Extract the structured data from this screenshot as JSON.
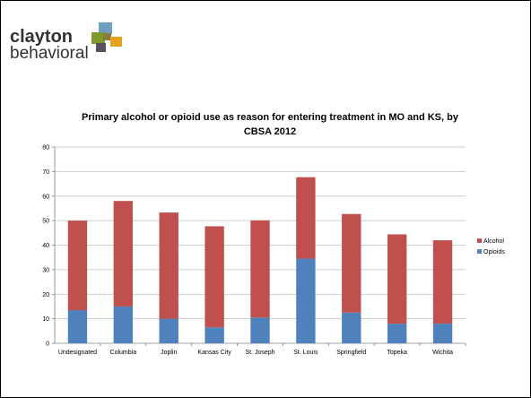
{
  "logo": {
    "line1": "clayton",
    "line2": "behavioral",
    "squares": [
      "#6d9fc0",
      "#7f9a2c",
      "#e7a21f",
      "#8a7a3c",
      "#5b4f63"
    ]
  },
  "chart_data": {
    "type": "bar",
    "stacked": true,
    "title": "Primary alcohol or opioid use as reason for entering treatment in MO and KS, by CBSA 2012",
    "xlabel": "",
    "ylabel": "",
    "ylim": [
      0,
      80
    ],
    "yticks": [
      0,
      10,
      20,
      30,
      40,
      50,
      60,
      70,
      80
    ],
    "grid": true,
    "legend_position": "right",
    "categories": [
      "Undesignated",
      "Columbia",
      "Joplin",
      "Kansas City",
      "St. Joseph",
      "St. Louis",
      "Springfield",
      "Topeka",
      "Wichita"
    ],
    "series": [
      {
        "name": "Opioids",
        "color": "#4f81bd",
        "values": [
          13.5,
          15,
          10,
          6.5,
          10.5,
          34.5,
          12.5,
          8,
          8
        ]
      },
      {
        "name": "Alcohol",
        "color": "#c0504d",
        "values": [
          36.5,
          43,
          43.3,
          41.2,
          39.6,
          33.2,
          40.2,
          36.4,
          34
        ]
      }
    ],
    "legend_order": [
      "Alcohol",
      "Opioids"
    ]
  }
}
